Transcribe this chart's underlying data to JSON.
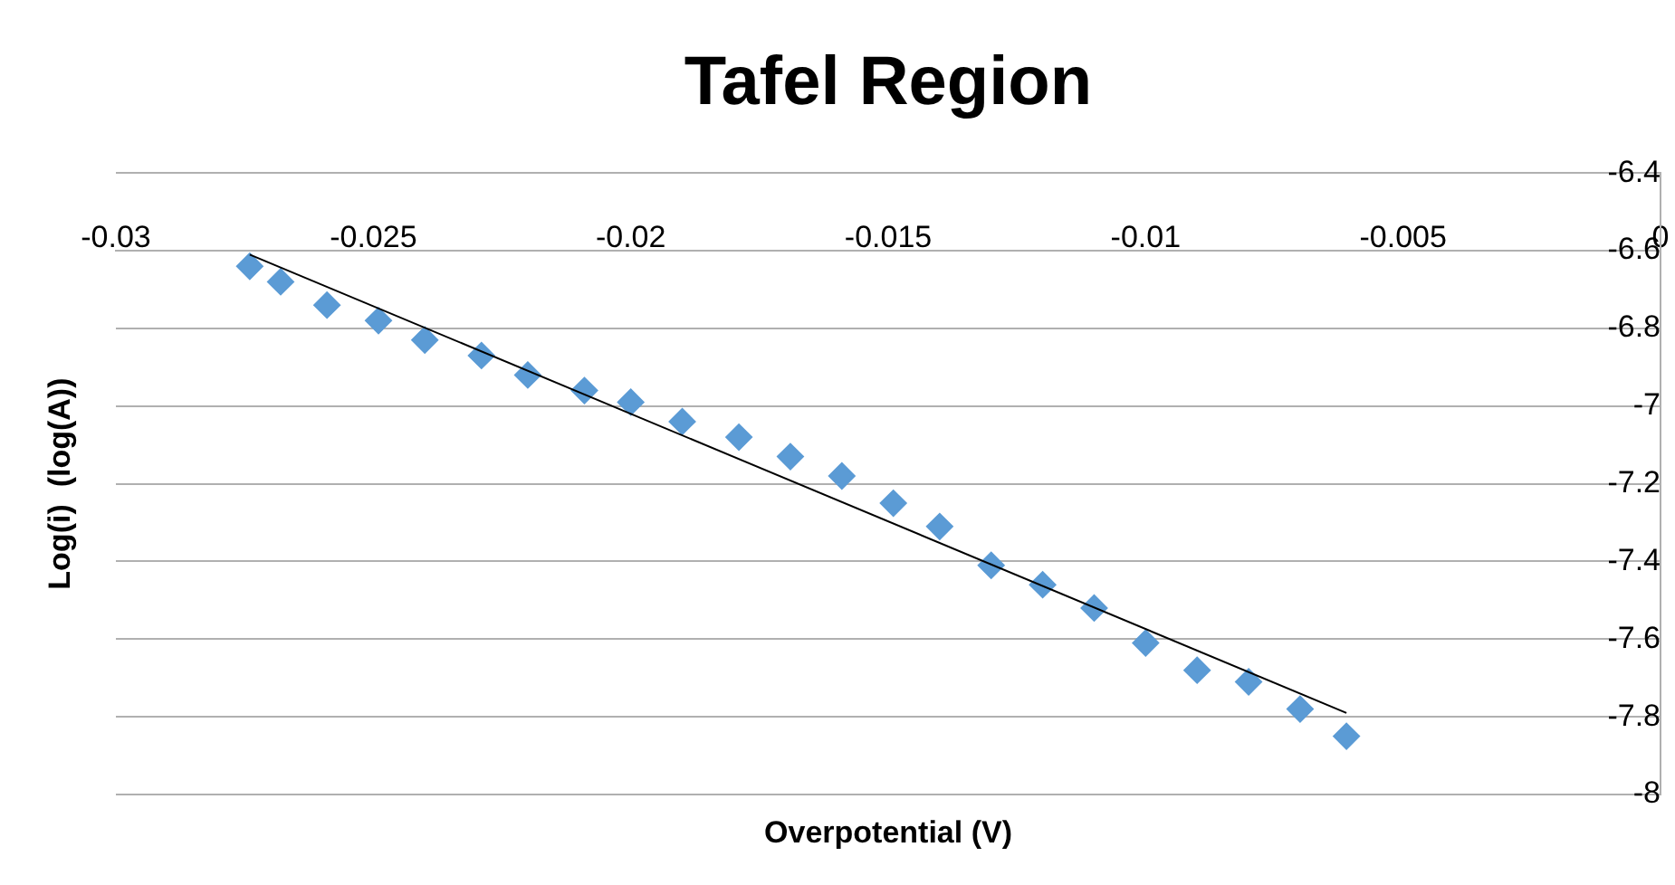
{
  "chart_data": {
    "type": "scatter",
    "title": "Tafel Region",
    "xlabel": "Overpotential (V)",
    "ylabel": "Log(i)  (log(A))",
    "xlim": [
      -0.03,
      0
    ],
    "xticks": [
      -0.03,
      -0.025,
      -0.02,
      -0.015,
      -0.01,
      -0.005,
      0
    ],
    "ylim": [
      -8,
      -6.4
    ],
    "yticks": [
      -8,
      -7.8,
      -7.6,
      -7.4,
      -7.2,
      -7,
      -6.8,
      -6.6,
      -6.4
    ],
    "grid": "y",
    "legend": false,
    "marker": "diamond",
    "series": [
      {
        "color": "#5b9bd5",
        "x": [
          -0.0274,
          -0.0268,
          -0.0259,
          -0.0249,
          -0.024,
          -0.0229,
          -0.022,
          -0.0209,
          -0.02,
          -0.019,
          -0.0179,
          -0.0169,
          -0.0159,
          -0.0149,
          -0.014,
          -0.013,
          -0.012,
          -0.011,
          -0.01,
          -0.009,
          -0.008,
          -0.007,
          -0.0061
        ],
        "values": [
          -6.64,
          -6.68,
          -6.74,
          -6.78,
          -6.83,
          -6.87,
          -6.92,
          -6.96,
          -6.99,
          -7.04,
          -7.08,
          -7.13,
          -7.18,
          -7.25,
          -7.31,
          -7.41,
          -7.46,
          -7.52,
          -7.61,
          -7.68,
          -7.71,
          -7.78,
          -7.85
        ]
      },
      {
        "type": "line",
        "color": "#000000",
        "marker": "none",
        "x": [
          -0.0274,
          -0.0061
        ],
        "values": [
          -6.61,
          -7.79
        ]
      }
    ]
  }
}
